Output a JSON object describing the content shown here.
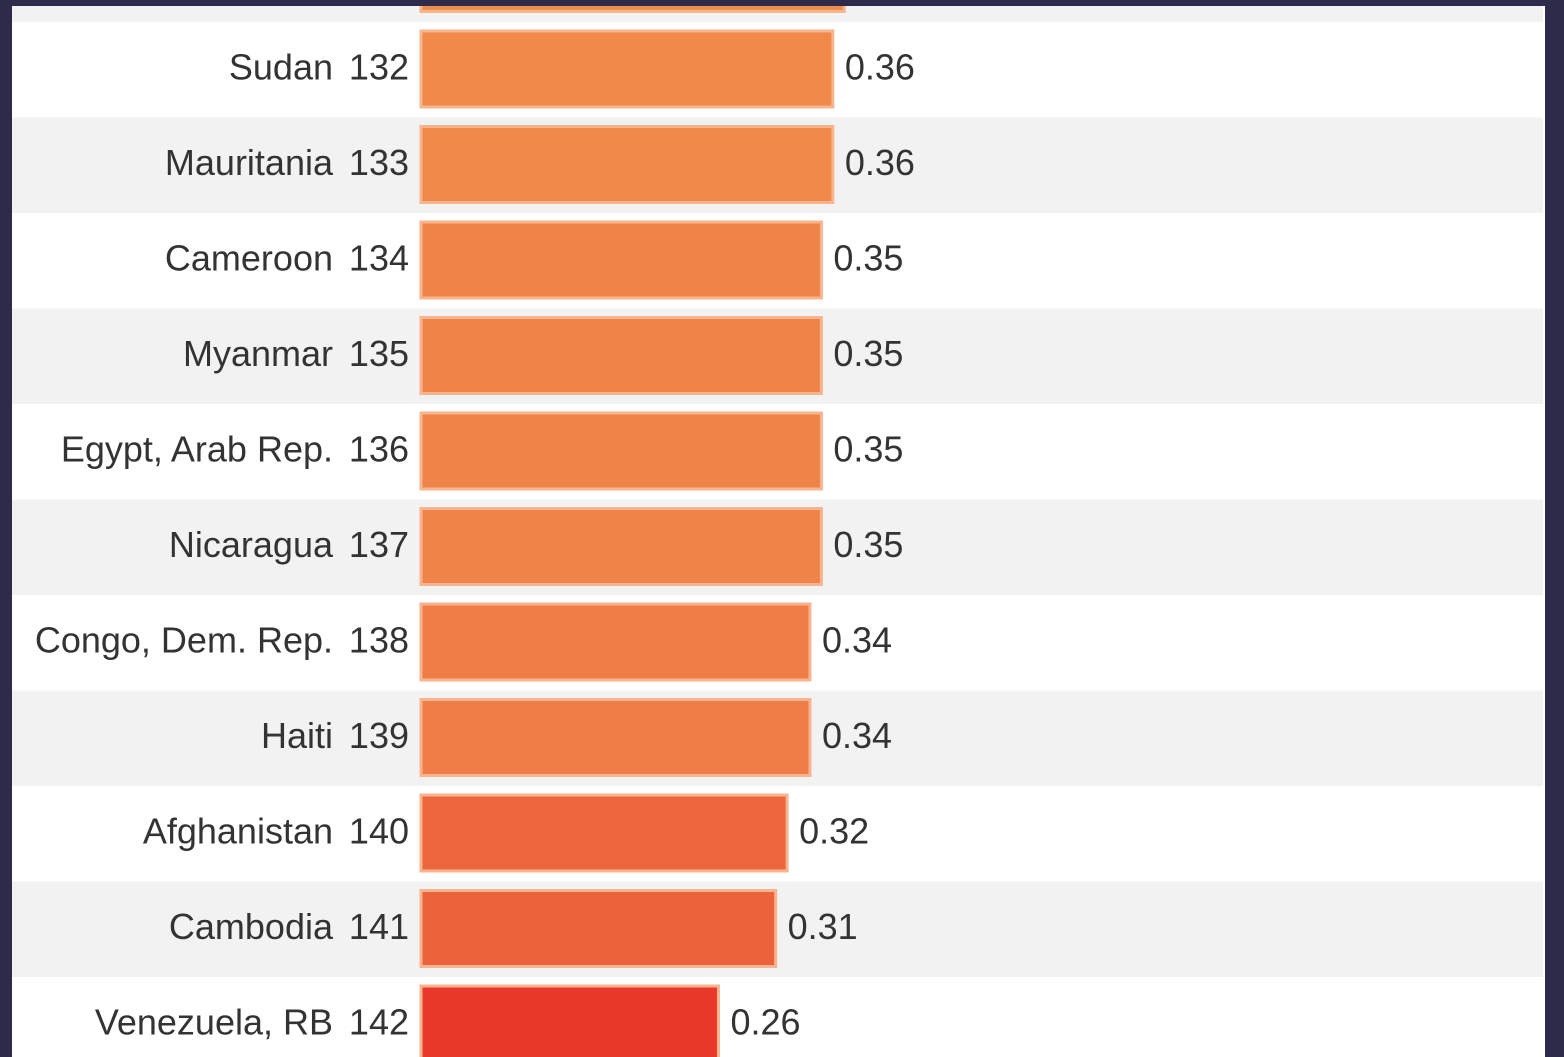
{
  "chart_data": {
    "type": "bar",
    "categories": [
      null,
      "Sudan",
      "Mauritania",
      "Cameroon",
      "Myanmar",
      "Egypt, Arab Rep.",
      "Nicaragua",
      "Congo, Dem. Rep.",
      "Haiti",
      "Afghanistan",
      "Cambodia",
      "Venezuela, RB"
    ],
    "ranks": [
      null,
      132,
      133,
      134,
      135,
      136,
      137,
      138,
      139,
      140,
      141,
      142
    ],
    "values": [
      0.37,
      0.36,
      0.36,
      0.35,
      0.35,
      0.35,
      0.35,
      0.34,
      0.34,
      0.32,
      0.31,
      0.26
    ],
    "colors": [
      "#f08c4b",
      "#f0894a",
      "#f0894a",
      "#ef8348",
      "#ef8348",
      "#ef8348",
      "#ef8348",
      "#ee7d46",
      "#ee7d46",
      "#ec663c",
      "#ec623b",
      "#e8392b"
    ],
    "xlim": [
      0,
      1
    ]
  }
}
